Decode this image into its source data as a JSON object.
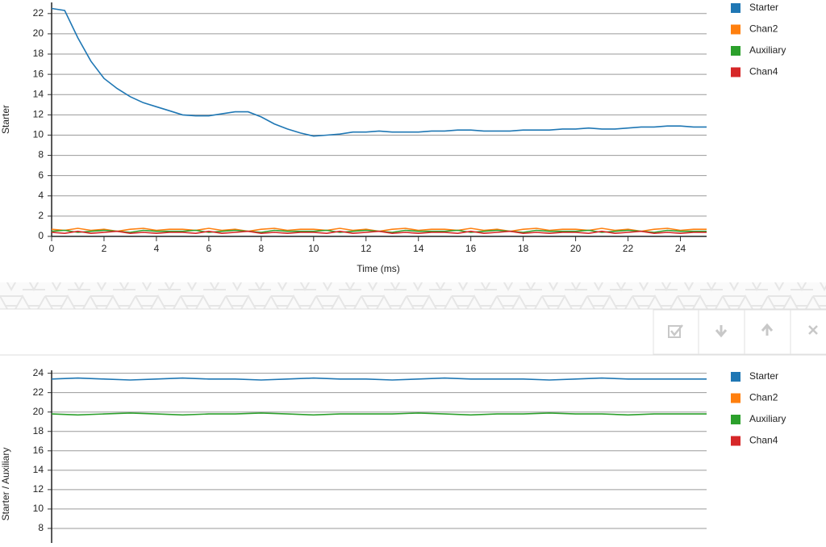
{
  "chart_data": [
    {
      "type": "line",
      "y_label": "Starter",
      "x_label": "Time (ms)",
      "xlim": [
        0,
        25
      ],
      "xticks": [
        0,
        2,
        4,
        6,
        8,
        10,
        12,
        14,
        16,
        18,
        20,
        22,
        24
      ],
      "ylim": [
        0,
        23.1
      ],
      "yticks": [
        0,
        2,
        4,
        6,
        8,
        10,
        12,
        14,
        16,
        18,
        20,
        22
      ],
      "grid": true,
      "legend": "right",
      "x": [
        0,
        0.5,
        1,
        1.5,
        2,
        2.5,
        3,
        3.5,
        4,
        4.5,
        5,
        5.5,
        6,
        6.5,
        7,
        7.5,
        8,
        8.5,
        9,
        9.5,
        10,
        10.5,
        11,
        11.5,
        12,
        12.5,
        13,
        13.5,
        14,
        14.5,
        15,
        15.5,
        16,
        16.5,
        17,
        17.5,
        18,
        18.5,
        19,
        19.5,
        20,
        20.5,
        21,
        21.5,
        22,
        22.5,
        23,
        23.5,
        24,
        24.5,
        25
      ],
      "series": [
        {
          "name": "Starter",
          "color": "#1f77b4",
          "values": [
            22.5,
            22.3,
            19.6,
            17.3,
            15.6,
            14.6,
            13.8,
            13.2,
            12.8,
            12.4,
            12.0,
            11.9,
            11.9,
            12.1,
            12.3,
            12.3,
            11.8,
            11.1,
            10.6,
            10.2,
            9.9,
            10.0,
            10.1,
            10.3,
            10.3,
            10.4,
            10.3,
            10.3,
            10.3,
            10.4,
            10.4,
            10.5,
            10.5,
            10.4,
            10.4,
            10.4,
            10.5,
            10.5,
            10.5,
            10.6,
            10.6,
            10.7,
            10.6,
            10.6,
            10.7,
            10.8,
            10.8,
            10.9,
            10.9,
            10.8,
            10.8
          ]
        },
        {
          "name": "Chan2",
          "color": "#ff7f0e",
          "values": [
            0.7,
            0.6,
            0.8,
            0.6,
            0.7,
            0.5,
            0.7,
            0.8,
            0.6,
            0.7,
            0.7,
            0.6,
            0.8,
            0.6,
            0.7,
            0.5,
            0.7,
            0.8,
            0.6,
            0.7,
            0.7,
            0.6,
            0.8,
            0.6,
            0.7,
            0.5,
            0.7,
            0.8,
            0.6,
            0.7,
            0.7,
            0.6,
            0.8,
            0.6,
            0.7,
            0.5,
            0.7,
            0.8,
            0.6,
            0.7,
            0.7,
            0.6,
            0.8,
            0.6,
            0.7,
            0.5,
            0.7,
            0.8,
            0.6,
            0.7,
            0.7
          ]
        },
        {
          "name": "Auxiliary",
          "color": "#2ca02c",
          "values": [
            0.5,
            0.6,
            0.4,
            0.5,
            0.6,
            0.5,
            0.4,
            0.6,
            0.5,
            0.5,
            0.5,
            0.6,
            0.4,
            0.5,
            0.6,
            0.5,
            0.4,
            0.6,
            0.5,
            0.5,
            0.5,
            0.6,
            0.4,
            0.5,
            0.6,
            0.5,
            0.4,
            0.6,
            0.5,
            0.5,
            0.5,
            0.6,
            0.4,
            0.5,
            0.6,
            0.5,
            0.4,
            0.6,
            0.5,
            0.5,
            0.5,
            0.6,
            0.4,
            0.5,
            0.6,
            0.5,
            0.4,
            0.6,
            0.5,
            0.5,
            0.5
          ]
        },
        {
          "name": "Chan4",
          "color": "#d62728",
          "values": [
            0.4,
            0.3,
            0.5,
            0.3,
            0.4,
            0.5,
            0.3,
            0.4,
            0.3,
            0.4,
            0.4,
            0.3,
            0.5,
            0.3,
            0.4,
            0.5,
            0.3,
            0.4,
            0.3,
            0.4,
            0.4,
            0.3,
            0.5,
            0.3,
            0.4,
            0.5,
            0.3,
            0.4,
            0.3,
            0.4,
            0.4,
            0.3,
            0.5,
            0.3,
            0.4,
            0.5,
            0.3,
            0.4,
            0.3,
            0.4,
            0.4,
            0.3,
            0.5,
            0.3,
            0.4,
            0.5,
            0.3,
            0.4,
            0.3,
            0.4,
            0.4
          ]
        }
      ]
    },
    {
      "type": "line",
      "y_label": "Starter / Auxiliary",
      "xlim": [
        0,
        25
      ],
      "ylim": [
        6.5,
        24.3
      ],
      "yticks": [
        8,
        10,
        12,
        14,
        16,
        18,
        20,
        22,
        24
      ],
      "grid": true,
      "legend": "right",
      "x": [
        0,
        1,
        2,
        3,
        4,
        5,
        6,
        7,
        8,
        9,
        10,
        11,
        12,
        13,
        14,
        15,
        16,
        17,
        18,
        19,
        20,
        21,
        22,
        23,
        24,
        25
      ],
      "series": [
        {
          "name": "Starter",
          "color": "#1f77b4",
          "values": [
            23.4,
            23.5,
            23.4,
            23.3,
            23.4,
            23.5,
            23.4,
            23.4,
            23.3,
            23.4,
            23.5,
            23.4,
            23.4,
            23.3,
            23.4,
            23.5,
            23.4,
            23.4,
            23.4,
            23.3,
            23.4,
            23.5,
            23.4,
            23.4,
            23.4,
            23.4
          ]
        },
        {
          "name": "Chan2",
          "color": "#ff7f0e",
          "values": [
            null,
            null,
            null,
            null,
            null,
            null,
            null,
            null,
            null,
            null,
            null,
            null,
            null,
            null,
            null,
            null,
            null,
            null,
            null,
            null,
            null,
            null,
            null,
            null,
            null,
            null
          ]
        },
        {
          "name": "Auxiliary",
          "color": "#2ca02c",
          "values": [
            19.8,
            19.7,
            19.8,
            19.9,
            19.8,
            19.7,
            19.8,
            19.8,
            19.9,
            19.8,
            19.7,
            19.8,
            19.8,
            19.8,
            19.9,
            19.8,
            19.7,
            19.8,
            19.8,
            19.9,
            19.8,
            19.8,
            19.7,
            19.8,
            19.8,
            19.8
          ]
        },
        {
          "name": "Chan4",
          "color": "#d62728",
          "values": [
            null,
            null,
            null,
            null,
            null,
            null,
            null,
            null,
            null,
            null,
            null,
            null,
            null,
            null,
            null,
            null,
            null,
            null,
            null,
            null,
            null,
            null,
            null,
            null,
            null,
            null
          ]
        }
      ]
    }
  ]
}
